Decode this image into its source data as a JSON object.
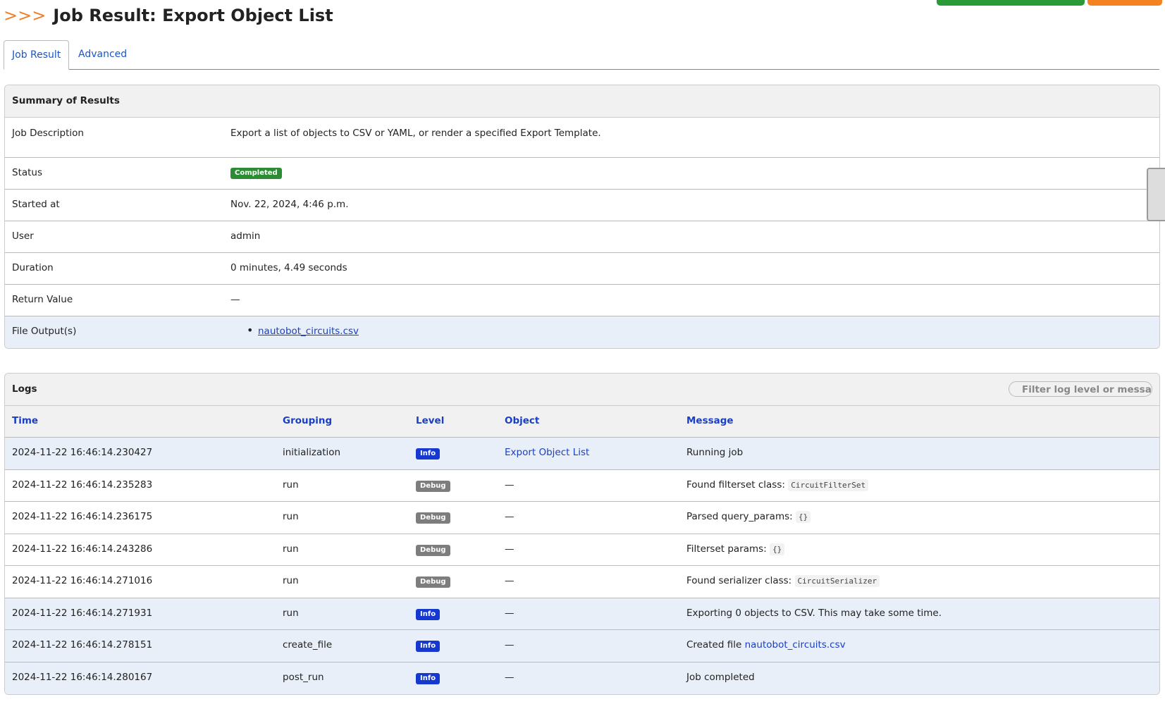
{
  "header": {
    "title_prefix": ">>>",
    "title": "Job Result: Export Object List"
  },
  "tabs": [
    "Job Result",
    "Advanced"
  ],
  "summary": {
    "title": "Summary of Results",
    "rows": [
      {
        "label": "Job Description",
        "value": "Export a list of objects to CSV or YAML, or render a specified Export Template."
      },
      {
        "label": "Status",
        "badge": "Completed"
      },
      {
        "label": "Started at",
        "value": "Nov. 22, 2024, 4:46 p.m."
      },
      {
        "label": "User",
        "value": "admin"
      },
      {
        "label": "Duration",
        "value": "0 minutes, 4.49 seconds"
      },
      {
        "label": "Return Value",
        "value": "—"
      },
      {
        "label": "File Output(s)",
        "files": [
          "nautobot_circuits.csv"
        ]
      }
    ]
  },
  "logs": {
    "title": "Logs",
    "filter_placeholder": "Filter log level or message",
    "columns": [
      "Time",
      "Grouping",
      "Level",
      "Object",
      "Message"
    ],
    "rows": [
      {
        "time": "2024-11-22 16:46:14.230427",
        "grouping": "initialization",
        "level": "Info",
        "object": "Export Object List",
        "message": "Running job"
      },
      {
        "time": "2024-11-22 16:46:14.235283",
        "grouping": "run",
        "level": "Debug",
        "object": "—",
        "message": "Found filterset class:",
        "code": "CircuitFilterSet"
      },
      {
        "time": "2024-11-22 16:46:14.236175",
        "grouping": "run",
        "level": "Debug",
        "object": "—",
        "message": "Parsed query_params:",
        "code": "{}"
      },
      {
        "time": "2024-11-22 16:46:14.243286",
        "grouping": "run",
        "level": "Debug",
        "object": "—",
        "message": "Filterset params:",
        "code": "{}"
      },
      {
        "time": "2024-11-22 16:46:14.271016",
        "grouping": "run",
        "level": "Debug",
        "object": "—",
        "message": "Found serializer class:",
        "code": "CircuitSerializer"
      },
      {
        "time": "2024-11-22 16:46:14.271931",
        "grouping": "run",
        "level": "Info",
        "object": "—",
        "message": "Exporting 0 objects to CSV. This may take some time."
      },
      {
        "time": "2024-11-22 16:46:14.278151",
        "grouping": "create_file",
        "level": "Info",
        "object": "—",
        "message": "Created file",
        "link": "nautobot_circuits.csv"
      },
      {
        "time": "2024-11-22 16:46:14.280167",
        "grouping": "post_run",
        "level": "Info",
        "object": "—",
        "message": "Job completed"
      }
    ]
  }
}
